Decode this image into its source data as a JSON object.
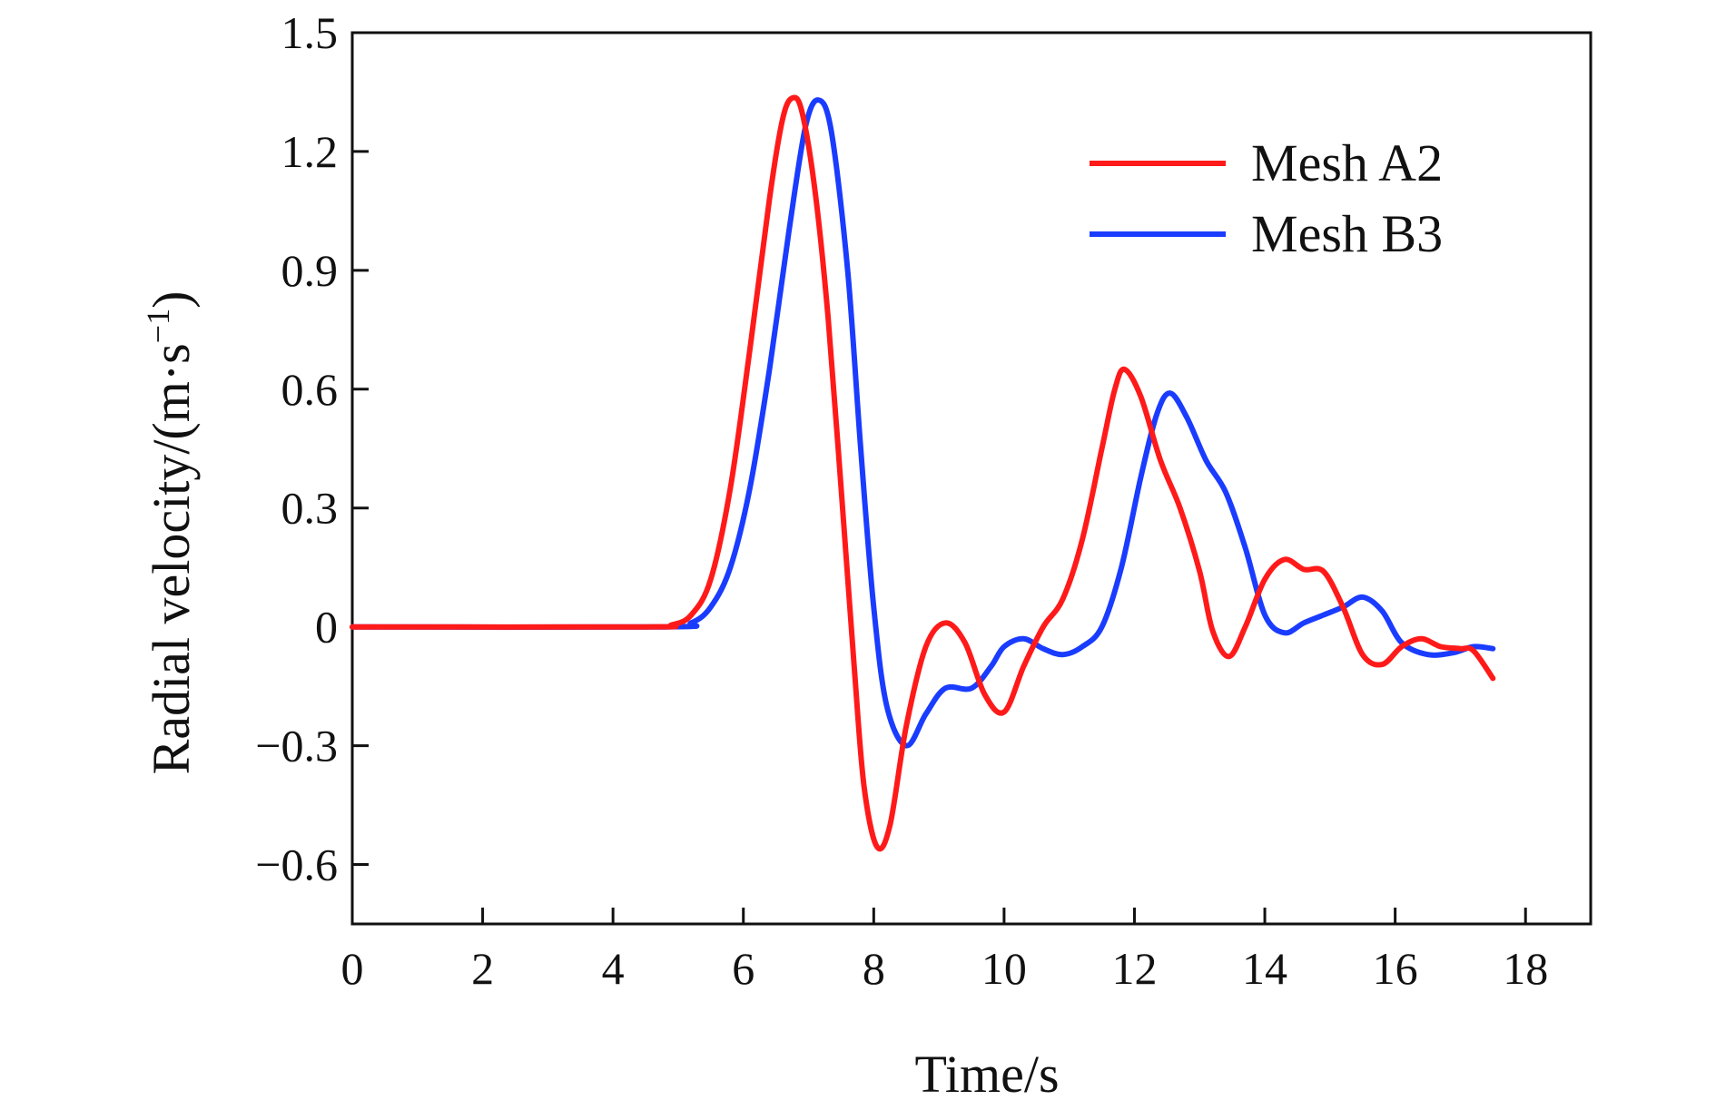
{
  "chart_data": {
    "type": "line",
    "title": "",
    "xlabel": "Time/s",
    "ylabel": "Radial velocity/(m·s",
    "ylabel_exponent": "−1",
    "ylabel_close": ")",
    "xlim": [
      0,
      19
    ],
    "ylim": [
      -0.75,
      1.5
    ],
    "x_ticks": [
      0,
      2,
      4,
      6,
      8,
      10,
      12,
      14,
      16,
      18
    ],
    "x_tick_labels": [
      "0",
      "2",
      "4",
      "6",
      "8",
      "10",
      "12",
      "14",
      "16",
      "18"
    ],
    "y_ticks": [
      -0.6,
      -0.3,
      0,
      0.3,
      0.6,
      0.9,
      1.2,
      1.5
    ],
    "y_tick_labels": [
      "−0.6",
      "−0.3",
      "0",
      "0.3",
      "0.6",
      "0.9",
      "1.2",
      "1.5"
    ],
    "grid": false,
    "legend_position": "top-right",
    "series": [
      {
        "name": "Mesh A2",
        "color": "#ff1a1a",
        "points": [
          [
            0,
            0
          ],
          [
            4.5,
            0
          ],
          [
            4.9,
            0.005
          ],
          [
            5.2,
            0.03
          ],
          [
            5.5,
            0.12
          ],
          [
            5.8,
            0.35
          ],
          [
            6.1,
            0.7
          ],
          [
            6.4,
            1.08
          ],
          [
            6.6,
            1.28
          ],
          [
            6.75,
            1.335
          ],
          [
            6.9,
            1.3
          ],
          [
            7.1,
            1.1
          ],
          [
            7.3,
            0.78
          ],
          [
            7.5,
            0.35
          ],
          [
            7.7,
            -0.1
          ],
          [
            7.85,
            -0.4
          ],
          [
            8.05,
            -0.555
          ],
          [
            8.25,
            -0.5
          ],
          [
            8.5,
            -0.25
          ],
          [
            8.8,
            -0.05
          ],
          [
            9.1,
            0.01
          ],
          [
            9.4,
            -0.04
          ],
          [
            9.7,
            -0.17
          ],
          [
            10.0,
            -0.215
          ],
          [
            10.3,
            -0.1
          ],
          [
            10.6,
            0.0
          ],
          [
            10.9,
            0.07
          ],
          [
            11.2,
            0.22
          ],
          [
            11.5,
            0.45
          ],
          [
            11.7,
            0.6
          ],
          [
            11.85,
            0.65
          ],
          [
            12.1,
            0.58
          ],
          [
            12.4,
            0.42
          ],
          [
            12.7,
            0.3
          ],
          [
            13.0,
            0.14
          ],
          [
            13.2,
            -0.01
          ],
          [
            13.45,
            -0.075
          ],
          [
            13.7,
            0.0
          ],
          [
            14.0,
            0.12
          ],
          [
            14.3,
            0.17
          ],
          [
            14.6,
            0.145
          ],
          [
            14.9,
            0.14
          ],
          [
            15.2,
            0.05
          ],
          [
            15.5,
            -0.07
          ],
          [
            15.8,
            -0.095
          ],
          [
            16.1,
            -0.05
          ],
          [
            16.4,
            -0.03
          ],
          [
            16.7,
            -0.05
          ],
          [
            17.0,
            -0.055
          ],
          [
            17.2,
            -0.06
          ],
          [
            17.5,
            -0.13
          ]
        ]
      },
      {
        "name": "Mesh B3",
        "color": "#1a3cff",
        "points": [
          [
            0,
            0
          ],
          [
            4.8,
            0
          ],
          [
            5.2,
            0.01
          ],
          [
            5.5,
            0.05
          ],
          [
            5.8,
            0.15
          ],
          [
            6.1,
            0.35
          ],
          [
            6.4,
            0.65
          ],
          [
            6.7,
            1.0
          ],
          [
            6.95,
            1.26
          ],
          [
            7.15,
            1.33
          ],
          [
            7.35,
            1.25
          ],
          [
            7.6,
            0.9
          ],
          [
            7.8,
            0.45
          ],
          [
            8.0,
            0.05
          ],
          [
            8.2,
            -0.2
          ],
          [
            8.5,
            -0.3
          ],
          [
            8.8,
            -0.22
          ],
          [
            9.1,
            -0.155
          ],
          [
            9.5,
            -0.155
          ],
          [
            9.8,
            -0.1
          ],
          [
            10.0,
            -0.05
          ],
          [
            10.3,
            -0.03
          ],
          [
            10.6,
            -0.055
          ],
          [
            10.9,
            -0.07
          ],
          [
            11.2,
            -0.05
          ],
          [
            11.5,
            0.0
          ],
          [
            11.8,
            0.15
          ],
          [
            12.1,
            0.38
          ],
          [
            12.35,
            0.54
          ],
          [
            12.55,
            0.59
          ],
          [
            12.8,
            0.53
          ],
          [
            13.1,
            0.42
          ],
          [
            13.4,
            0.34
          ],
          [
            13.7,
            0.2
          ],
          [
            14.0,
            0.03
          ],
          [
            14.3,
            -0.015
          ],
          [
            14.6,
            0.01
          ],
          [
            14.9,
            0.03
          ],
          [
            15.2,
            0.05
          ],
          [
            15.5,
            0.075
          ],
          [
            15.8,
            0.04
          ],
          [
            16.1,
            -0.04
          ],
          [
            16.5,
            -0.07
          ],
          [
            16.9,
            -0.065
          ],
          [
            17.2,
            -0.05
          ],
          [
            17.5,
            -0.055
          ]
        ]
      }
    ]
  }
}
